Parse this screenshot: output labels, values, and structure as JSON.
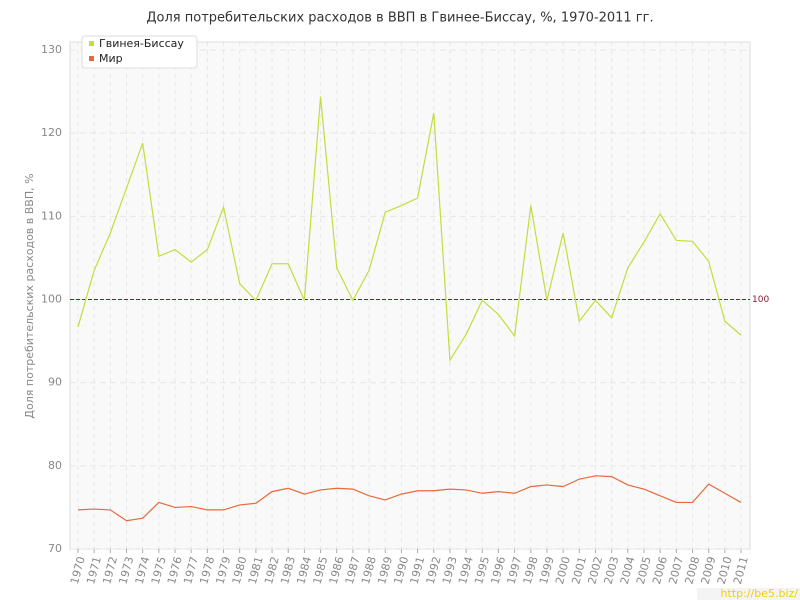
{
  "chart_data": {
    "type": "line",
    "title": "Доля потребительских расходов в ВВП в Гвинее-Биссау, %, 1970-2011 гг.",
    "y_label": "Доля потребительских расходов в ВВП, %",
    "x": [
      1970,
      1971,
      1972,
      1973,
      1974,
      1975,
      1976,
      1977,
      1978,
      1979,
      1980,
      1981,
      1982,
      1983,
      1984,
      1985,
      1986,
      1987,
      1988,
      1989,
      1990,
      1991,
      1992,
      1993,
      1994,
      1995,
      1996,
      1997,
      1998,
      1999,
      2000,
      2001,
      2002,
      2003,
      2004,
      2005,
      2006,
      2007,
      2008,
      2009,
      2010,
      2011
    ],
    "xlim": [
      1970,
      2011
    ],
    "ylim": [
      70,
      130
    ],
    "yticks": [
      70,
      80,
      90,
      100,
      110,
      120,
      130
    ],
    "grid": true,
    "legend": "top-left",
    "hline": 100,
    "hline_color": "#8b1a2b",
    "series": [
      {
        "name": "Гвинея-Биссау",
        "color": "#c5dc3c",
        "values": [
          96.7,
          103.5,
          108,
          113.4,
          118.8,
          105.2,
          106,
          104.5,
          106,
          111.1,
          101.9,
          99.9,
          104.3,
          104.3,
          99.9,
          124.4,
          103.8,
          99.9,
          103.5,
          110.5,
          111.3,
          112.2,
          122.4,
          92.7,
          95.8,
          99.9,
          98.2,
          95.6,
          111.3,
          99.9,
          108,
          97.4,
          99.9,
          97.8,
          103.8,
          106.9,
          110.3,
          107.1,
          107,
          104.6,
          97.4,
          95.7
        ]
      },
      {
        "name": "Мир",
        "color": "#e8693a",
        "values": [
          74.7,
          74.8,
          74.7,
          73.4,
          73.7,
          75.6,
          75,
          75.1,
          74.7,
          74.7,
          75.3,
          75.5,
          76.9,
          77.3,
          76.6,
          77.1,
          77.3,
          77.2,
          76.4,
          75.9,
          76.6,
          77,
          77,
          77.2,
          77.1,
          76.7,
          76.9,
          76.7,
          77.5,
          77.7,
          77.5,
          78.4,
          78.8,
          78.7,
          77.7,
          77.2,
          76.4,
          75.6,
          75.6,
          77.8,
          76.7,
          75.6
        ]
      }
    ],
    "watermark": "http://be5.biz/"
  }
}
